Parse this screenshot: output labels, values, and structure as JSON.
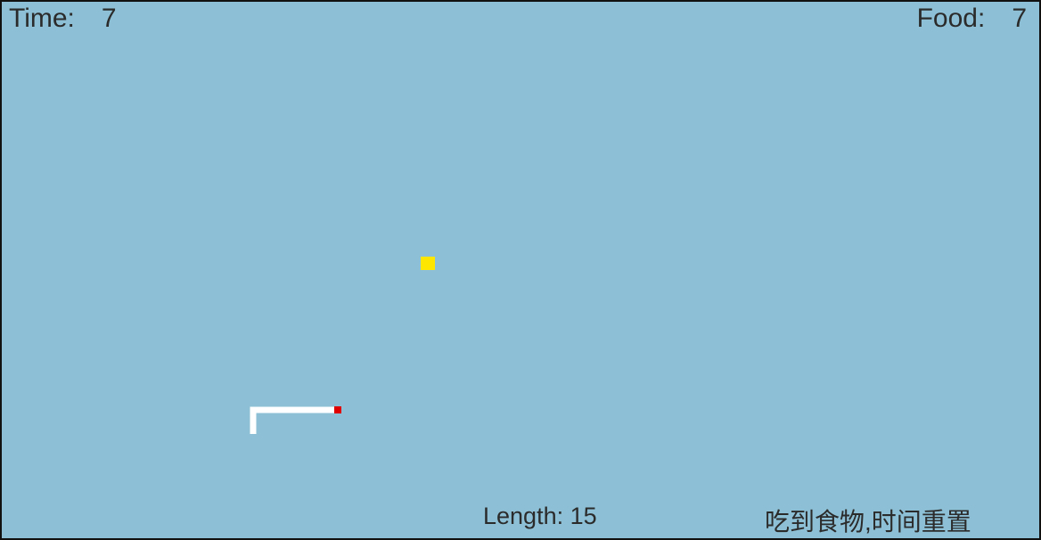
{
  "hud": {
    "time_label": "Time:",
    "time_value": 7,
    "food_label": "Food:",
    "food_value": 7
  },
  "status": {
    "length_label": "Length:",
    "length_value": 15,
    "message": "吃到食物,时间重置"
  }
}
